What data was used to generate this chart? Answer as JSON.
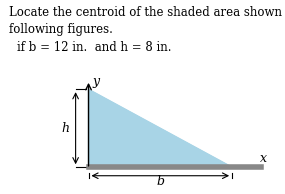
{
  "title_line1": "Locate the centroid of the shaded area shown in each of the",
  "title_line2": "following figures.",
  "subtitle": "if b = 12 in.  and h = 8 in.",
  "shaded_color": "#a8d4e6",
  "background_color": "#ffffff",
  "text_color": "#000000",
  "label_h": "h",
  "label_b": "b",
  "label_x": "x",
  "label_y": "y",
  "ground_color": "#888888",
  "title_fontsize": 8.5,
  "subtitle_fontsize": 8.5,
  "label_fontsize": 9
}
